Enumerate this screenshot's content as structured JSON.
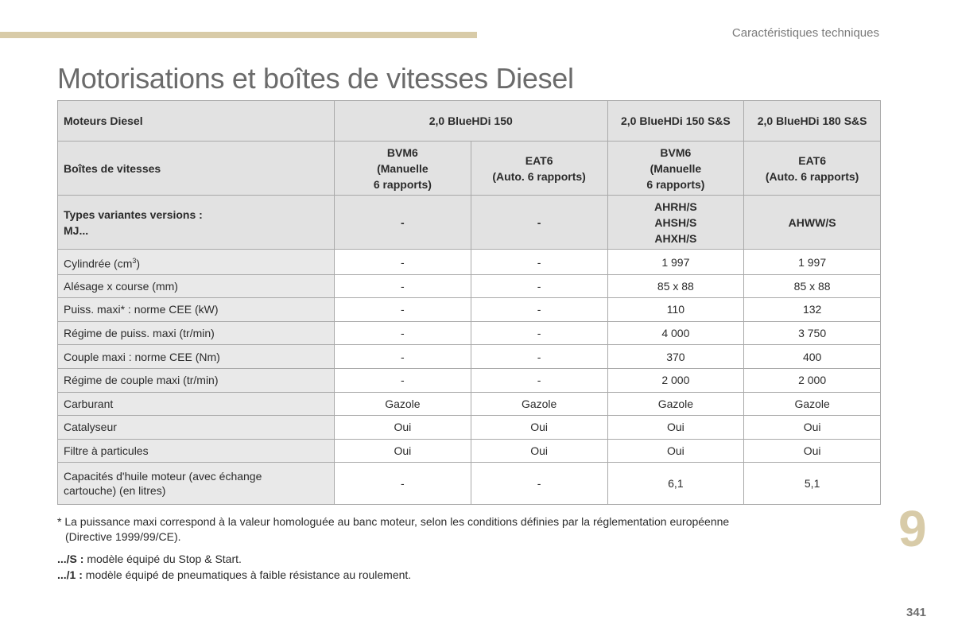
{
  "header": {
    "section": "Caractéristiques techniques"
  },
  "title": "Motorisations et boîtes de vitesses Diesel",
  "table": {
    "engines": {
      "label": "Moteurs Diesel",
      "items": [
        "2,0 BlueHDi 150",
        "2,0 BlueHDi 150 S&S",
        "2,0 BlueHDi 180 S&S"
      ]
    },
    "gearboxes": {
      "label": "Boîtes de vitesses",
      "items": [
        [
          "BVM6",
          "(Manuelle",
          "6 rapports)"
        ],
        [
          "EAT6",
          "(Auto. 6 rapports)"
        ],
        [
          "BVM6",
          "(Manuelle",
          "6 rapports)"
        ],
        [
          "EAT6",
          "(Auto. 6 rapports)"
        ]
      ]
    },
    "variants": {
      "label": [
        "Types variantes versions :",
        "MJ..."
      ],
      "items": [
        [
          "-"
        ],
        [
          "-"
        ],
        [
          "AHRH/S",
          "AHSH/S",
          "AHXH/S"
        ],
        [
          "AHWW/S"
        ]
      ]
    },
    "rows": [
      {
        "label": "Cylindrée (cm",
        "sup": "3",
        "label_end": ")",
        "values": [
          "-",
          "-",
          "1 997",
          "1 997"
        ]
      },
      {
        "label": "Alésage x course (mm)",
        "values": [
          "-",
          "-",
          "85 x 88",
          "85 x 88"
        ]
      },
      {
        "label": "Puiss. maxi* : norme CEE (kW)",
        "values": [
          "-",
          "-",
          "110",
          "132"
        ]
      },
      {
        "label": "Régime de puiss. maxi (tr/min)",
        "values": [
          "-",
          "-",
          "4 000",
          "3 750"
        ]
      },
      {
        "label": "Couple maxi : norme CEE (Nm)",
        "values": [
          "-",
          "-",
          "370",
          "400"
        ]
      },
      {
        "label": "Régime de couple maxi (tr/min)",
        "values": [
          "-",
          "-",
          "2 000",
          "2 000"
        ]
      },
      {
        "label": "Carburant",
        "values": [
          "Gazole",
          "Gazole",
          "Gazole",
          "Gazole"
        ]
      },
      {
        "label": "Catalyseur",
        "values": [
          "Oui",
          "Oui",
          "Oui",
          "Oui"
        ]
      },
      {
        "label": "Filtre à particules",
        "values": [
          "Oui",
          "Oui",
          "Oui",
          "Oui"
        ]
      },
      {
        "label": "Capacités d'huile moteur (avec échange",
        "label2": "cartouche) (en litres)",
        "values": [
          "-",
          "-",
          "6,1",
          "5,1"
        ]
      }
    ]
  },
  "footnotes": {
    "power_line1": "* La puissance maxi correspond à la valeur homologuée au banc moteur, selon les conditions définies par la réglementation européenne",
    "power_line2": "(Directive 1999/99/CE).",
    "stop_start": {
      "code": ".../S :",
      "text": " modèle équipé du Stop & Start."
    },
    "tyres": {
      "code": ".../1 :",
      "text": " modèle équipé de pneumatiques à faible résistance au roulement."
    }
  },
  "chapter_number": "9",
  "page_number": "341"
}
